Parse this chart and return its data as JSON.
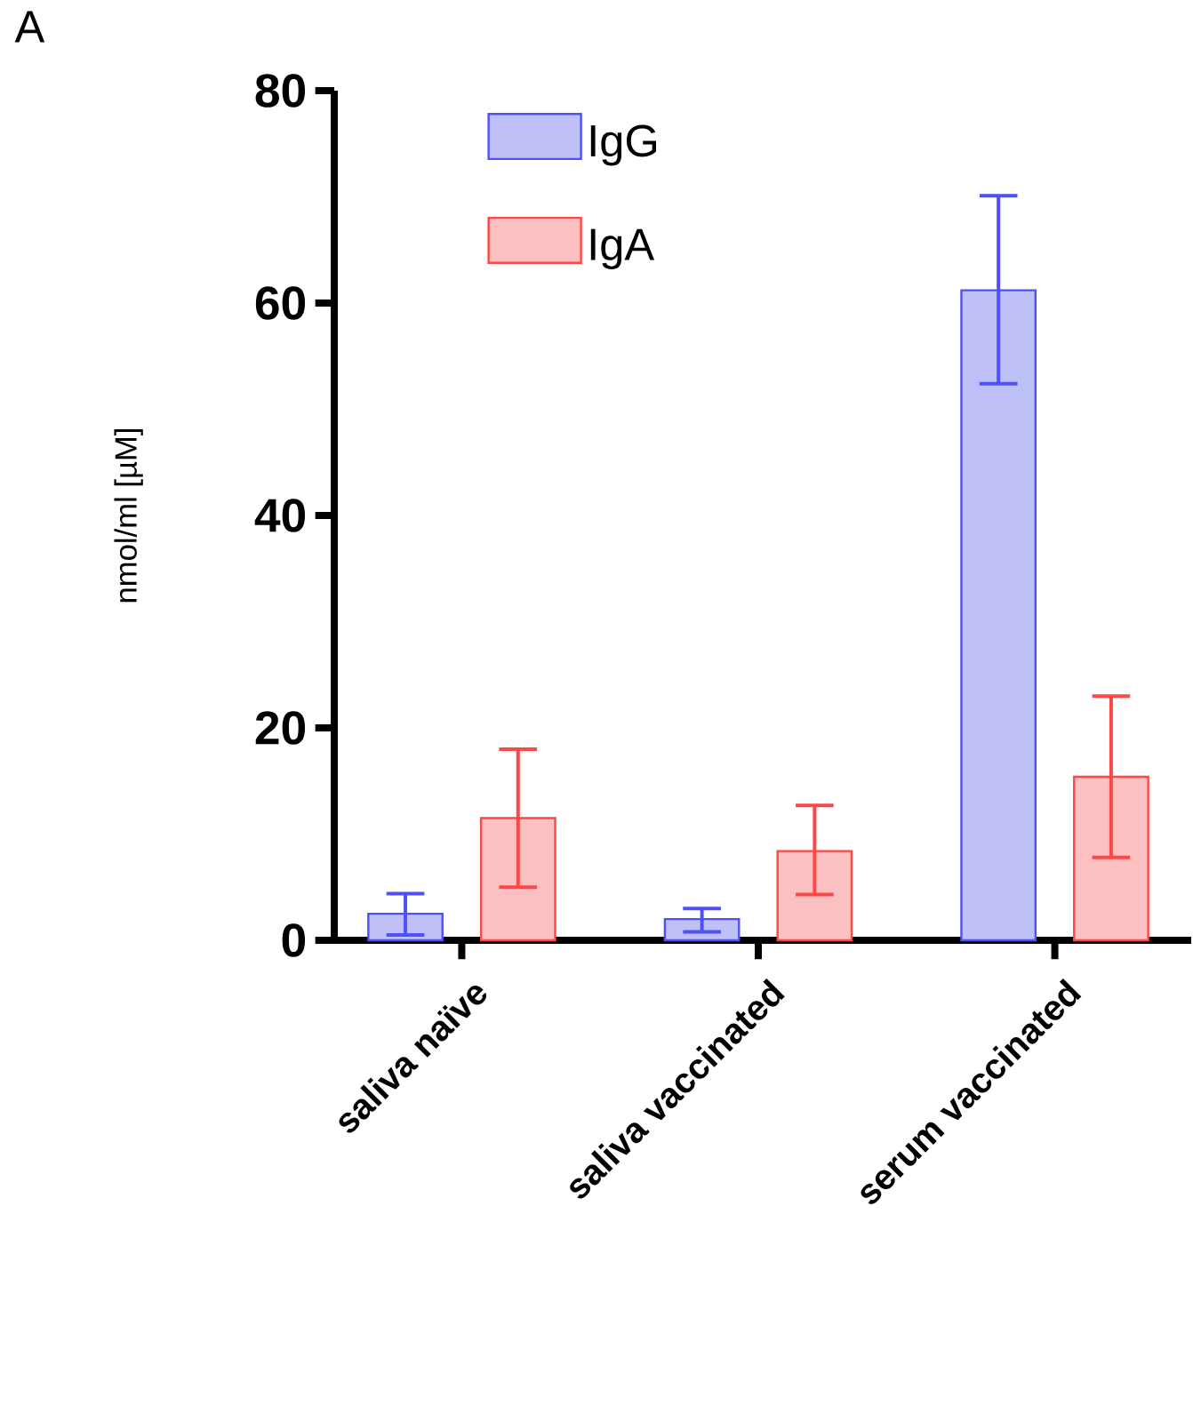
{
  "chart_data": {
    "type": "bar",
    "ylabel": "nmol/ml [µM]",
    "annotations": [
      "A"
    ],
    "categories": [
      "saliva naïve",
      "saliva vaccinated",
      "serum vaccinated"
    ],
    "series": [
      {
        "name": "IgG",
        "color": "#c0c0f8",
        "values": [
          2.5,
          2.0,
          61.2
        ],
        "errors": [
          [
            0.5,
            4.4
          ],
          [
            0.8,
            3.0
          ],
          [
            52.4,
            70.1
          ]
        ]
      },
      {
        "name": "IgA",
        "color": "#fcc0c0",
        "values": [
          11.5,
          8.4,
          15.4
        ],
        "errors": [
          [
            5.0,
            18.0
          ],
          [
            4.3,
            12.7
          ],
          [
            7.8,
            23.0
          ]
        ]
      }
    ],
    "ylim": [
      0,
      80
    ],
    "yticks": [
      0,
      20,
      40,
      60,
      80
    ],
    "legend": "top left"
  }
}
